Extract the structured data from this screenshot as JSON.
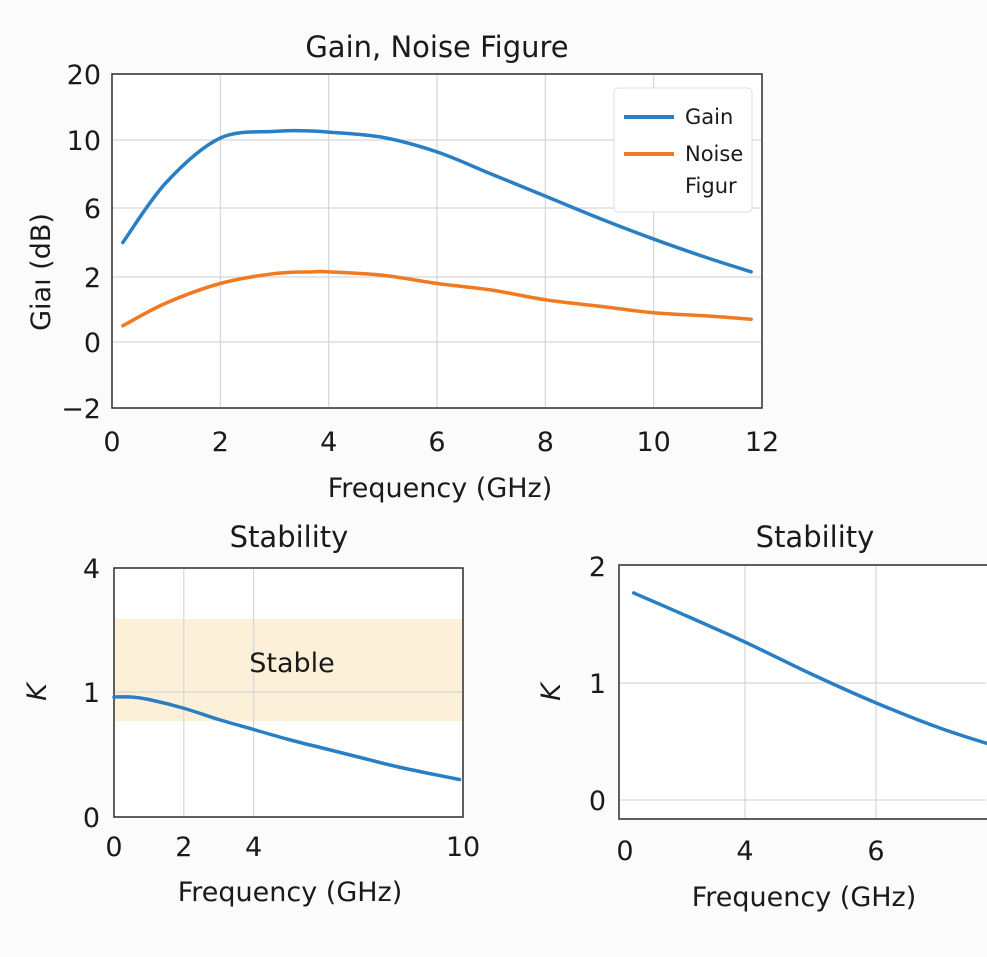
{
  "chart_data": [
    {
      "type": "line",
      "title": "Gain, Noise Figure",
      "xlabel": "Frequency (GHz)",
      "ylabel": "Giaı (dB)",
      "xlim": [
        0,
        12
      ],
      "ylim": [
        -2,
        20
      ],
      "xticks": [
        "0",
        "2",
        "4",
        "6",
        "8",
        "10",
        "12"
      ],
      "yticks": [
        "−2",
        "0",
        "2",
        "6",
        "10",
        "20"
      ],
      "grid": true,
      "legend": {
        "position": "top-right",
        "entries": [
          "Gain",
          "Noise Figur"
        ]
      },
      "series": [
        {
          "name": "Gain",
          "color": "#2a7fc4",
          "x": [
            0.2,
            1,
            2,
            3,
            3.5,
            4,
            5,
            6,
            7,
            8,
            9,
            10,
            11,
            11.8
          ],
          "y": [
            4.0,
            7.5,
            10.3,
            11.3,
            11.4,
            11.2,
            10.4,
            9.3,
            8.0,
            6.7,
            5.4,
            4.2,
            3.1,
            2.3
          ]
        },
        {
          "name": "Noise Figur",
          "color": "#f07a21",
          "x": [
            0.2,
            1,
            2,
            3,
            3.7,
            4,
            5,
            6,
            7,
            8,
            9,
            10,
            11,
            11.8
          ],
          "y": [
            0.5,
            1.2,
            1.8,
            2.2,
            2.3,
            2.3,
            2.1,
            1.8,
            1.6,
            1.3,
            1.1,
            0.9,
            0.8,
            0.7
          ]
        }
      ]
    },
    {
      "type": "line",
      "title": "Stability",
      "xlabel": "Frequency (GHz)",
      "ylabel": "K",
      "xlim": [
        0,
        10
      ],
      "yticks": [
        "0",
        "1",
        "4"
      ],
      "xticks": [
        "0",
        "2",
        "4",
        "10"
      ],
      "grid": true,
      "annotations": [
        {
          "text": "Stable",
          "type": "shaded-band"
        }
      ],
      "band_color": "#fdf0d8",
      "series": [
        {
          "color": "#2a7fc4",
          "x": [
            0,
            0.5,
            1,
            2,
            3,
            4,
            5,
            6,
            7,
            8,
            9,
            9.9
          ],
          "y": [
            0.96,
            0.96,
            0.94,
            0.87,
            0.78,
            0.7,
            0.62,
            0.55,
            0.48,
            0.41,
            0.35,
            0.3
          ]
        }
      ]
    },
    {
      "type": "line",
      "title": "Stability",
      "xlabel": "Frequency (GHz)",
      "ylabel": "K",
      "xlim": [
        2,
        8
      ],
      "ylim": [
        -0.2,
        2
      ],
      "xticks": [
        "0",
        "4",
        "6"
      ],
      "yticks": [
        "0",
        "1",
        "2"
      ],
      "grid": true,
      "series": [
        {
          "color": "#2a7fc4",
          "x": [
            2.3,
            3,
            4,
            5,
            6,
            7,
            8
          ],
          "y": [
            1.77,
            1.6,
            1.35,
            1.08,
            0.83,
            0.61,
            0.43
          ]
        }
      ]
    }
  ]
}
